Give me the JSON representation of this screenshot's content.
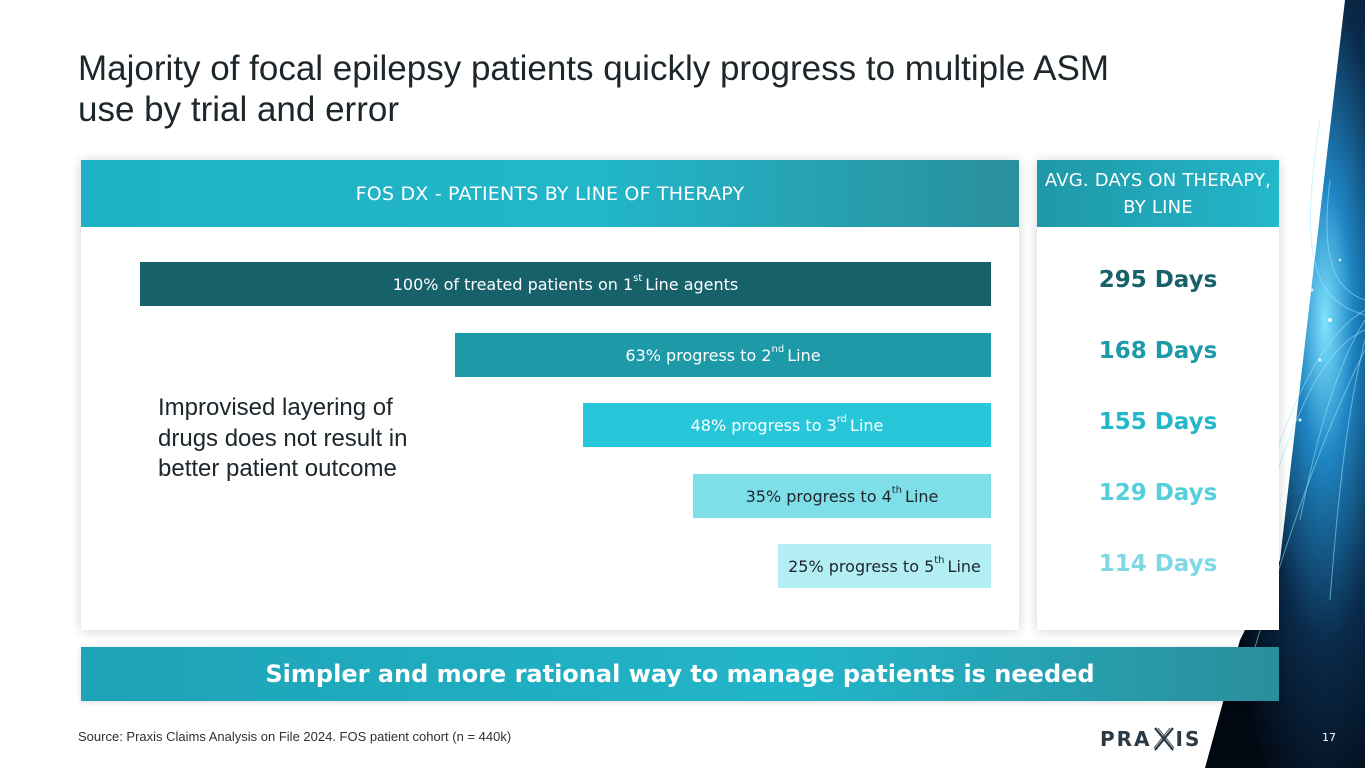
{
  "title": "Majority of focal epilepsy patients quickly progress to multiple ASM use by trial and error",
  "left_header": "FOS DX - PATIENTS BY LINE OF THERAPY",
  "right_header": "AVG. DAYS ON THERAPY, BY LINE",
  "note": "Improvised layering of drugs does not result in better patient outcome",
  "banner": "Simpler and more rational way to manage patients is needed",
  "source": "Source: Praxis Claims Analysis on File 2024. FOS patient cohort (n = 440k)",
  "logo": {
    "left": "PRA",
    "right": "IS"
  },
  "page_number": "17",
  "chart_data": {
    "type": "bar",
    "orientation": "horizontal",
    "alignment": "right-aligned funnel",
    "title": "FOS DX - PATIENTS BY LINE OF THERAPY",
    "xlim": [
      0,
      100
    ],
    "categories": [
      "1st Line",
      "2nd Line",
      "3rd Line",
      "4th Line",
      "5th Line"
    ],
    "bars": [
      {
        "value": 100,
        "pre": "100% of treated patients on 1",
        "sup": "st",
        "post": "Line agents",
        "color": "#17616b",
        "text_color": "#ffffff"
      },
      {
        "value": 63,
        "pre": "63% progress to 2",
        "sup": "nd",
        "post": "Line",
        "color": "#1e99a8",
        "text_color": "#ffffff"
      },
      {
        "value": 48,
        "pre": "48% progress to 3",
        "sup": "rd",
        "post": "Line",
        "color": "#28c6d9",
        "text_color": "#ffffff"
      },
      {
        "value": 35,
        "pre": "35% progress to 4",
        "sup": "th",
        "post": "Line",
        "color": "#7fdfe9",
        "text_color": "#1d262b"
      },
      {
        "value": 25,
        "pre": "25% progress to 5",
        "sup": "th",
        "post": "Line",
        "color": "#b3eef4",
        "text_color": "#1d262b"
      }
    ],
    "days_on_therapy": [
      {
        "value": 295,
        "label": "295 Days",
        "color": "#17616b"
      },
      {
        "value": 168,
        "label": "168 Days",
        "color": "#1e99a8"
      },
      {
        "value": 155,
        "label": "155 Days",
        "color": "#24b7ca"
      },
      {
        "value": 129,
        "label": "129 Days",
        "color": "#56cfdd"
      },
      {
        "value": 114,
        "label": "114 Days",
        "color": "#7fd9e4"
      }
    ]
  }
}
